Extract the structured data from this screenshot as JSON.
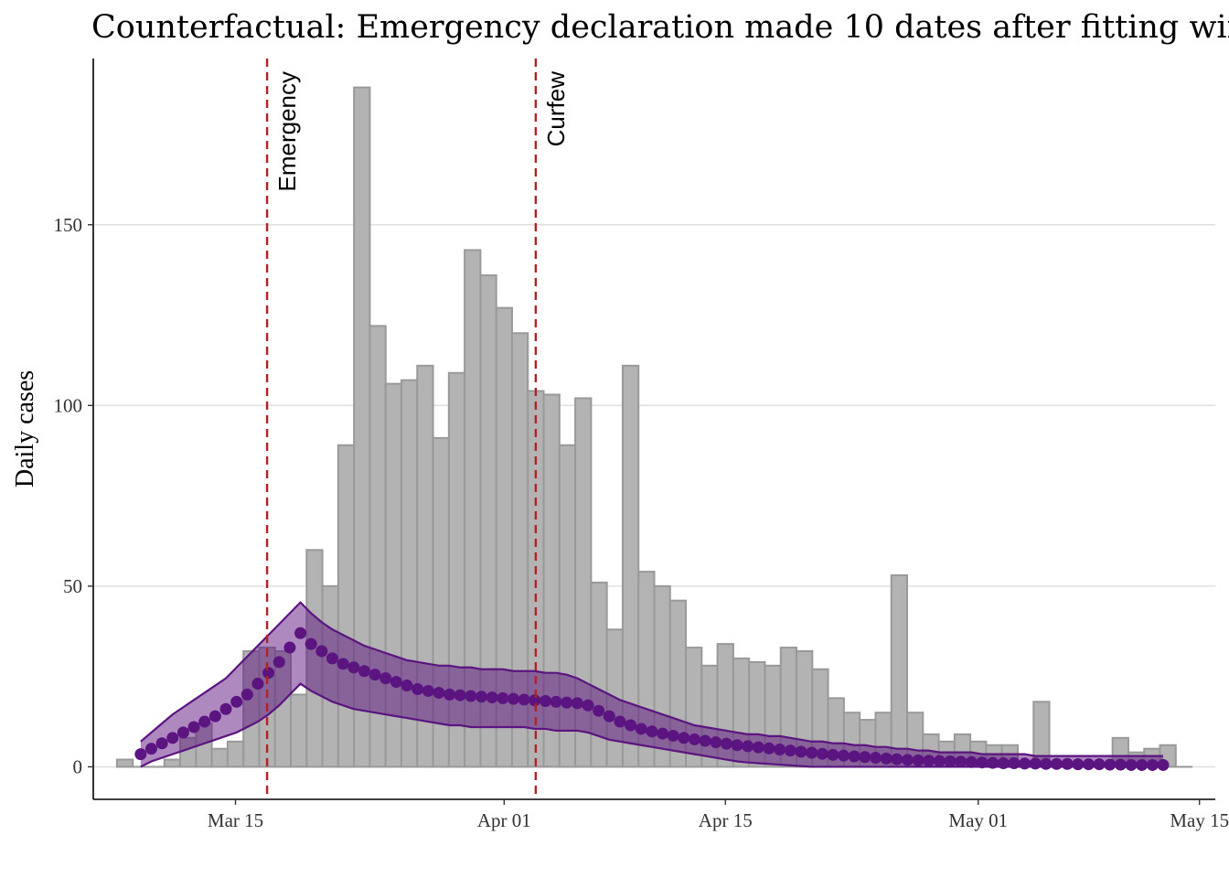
{
  "chart_data": {
    "type": "bar",
    "title": "Counterfactual: Emergency declaration made 10 dates after fitting window",
    "xlabel": "",
    "ylabel": "Daily cases",
    "x_start_date": "2020-03-08",
    "x_ticks": [
      {
        "date": "2020-03-15",
        "label": "Mar 15"
      },
      {
        "date": "2020-04-01",
        "label": "Apr 01"
      },
      {
        "date": "2020-04-15",
        "label": "Apr 15"
      },
      {
        "date": "2020-05-01",
        "label": "May 01"
      },
      {
        "date": "2020-05-15",
        "label": "May 15"
      }
    ],
    "xlim": [
      "2020-03-06",
      "2020-05-16"
    ],
    "ylim": [
      -9,
      196
    ],
    "y_ticks": [
      0,
      50,
      100,
      150
    ],
    "grid": "horizontal-major",
    "daily_cases": [
      2,
      0,
      0,
      2,
      8,
      12,
      5,
      7,
      32,
      33,
      32,
      20,
      60,
      50,
      89,
      188,
      122,
      106,
      107,
      111,
      91,
      109,
      143,
      136,
      127,
      120,
      104,
      103,
      89,
      102,
      51,
      38,
      111,
      54,
      50,
      46,
      33,
      28,
      34,
      30,
      29,
      28,
      33,
      32,
      27,
      19,
      15,
      13,
      15,
      53,
      15,
      9,
      7,
      9,
      7,
      6,
      6,
      0,
      18,
      0,
      0,
      0,
      0,
      8,
      4,
      5,
      6,
      0
    ],
    "model": {
      "name": "Counterfactual fit",
      "start_date": "2020-03-09",
      "median": [
        3.5,
        5,
        6.5,
        8,
        9.5,
        11,
        12.5,
        14,
        16,
        18,
        20,
        23,
        26,
        29,
        33,
        37,
        34,
        32,
        30,
        28.5,
        27.5,
        26.5,
        25.5,
        24.5,
        23.5,
        22.5,
        21.5,
        21,
        20.5,
        20,
        19.8,
        19.6,
        19.4,
        19.2,
        19,
        18.8,
        18.6,
        18.4,
        18.2,
        18,
        17.8,
        17.6,
        17,
        15.5,
        14,
        12.5,
        11.5,
        10.5,
        9.8,
        9.2,
        8.6,
        8,
        7.6,
        7.2,
        6.8,
        6.4,
        6,
        5.7,
        5.4,
        5.1,
        4.8,
        4.5,
        4.2,
        3.9,
        3.6,
        3.3,
        3.1,
        2.9,
        2.7,
        2.5,
        2.3,
        2.1,
        1.9,
        1.8,
        1.7,
        1.6,
        1.5,
        1.4,
        1.3,
        1.2,
        1.1,
        1,
        1,
        0.9,
        0.9,
        0.8,
        0.8,
        0.8,
        0.7,
        0.7,
        0.7,
        0.6,
        0.6,
        0.5,
        0.5,
        0.5,
        0.5
      ],
      "upper": [
        7,
        9.5,
        12,
        14.5,
        16.5,
        18.5,
        20.5,
        22.5,
        24.5,
        27.5,
        30.5,
        33.5,
        36.5,
        39.5,
        42.5,
        45.5,
        42.5,
        40,
        38,
        36.5,
        35,
        33.5,
        32.5,
        31.5,
        30.5,
        29.5,
        29,
        28.5,
        28,
        28,
        27.5,
        27.5,
        27,
        27,
        27,
        26.5,
        26.5,
        26.5,
        26,
        26,
        25.5,
        24.5,
        23,
        21.5,
        20,
        18.5,
        17.5,
        16.5,
        15.5,
        14.5,
        13.5,
        12.5,
        11.5,
        11,
        10.5,
        10,
        9.5,
        9,
        9,
        8.5,
        8.5,
        8,
        7.5,
        7,
        7,
        6.5,
        6.5,
        6,
        6,
        5.5,
        5.5,
        5,
        5,
        4.5,
        4.5,
        4,
        4,
        4,
        4,
        3.5,
        3.5,
        3.5,
        3.5,
        3.5,
        3,
        3,
        3,
        3,
        3,
        3,
        3,
        3,
        3,
        3,
        3,
        3,
        3
      ],
      "lower": [
        0,
        1.5,
        2.5,
        3.5,
        4.5,
        5.5,
        6.5,
        7.5,
        8.5,
        9.5,
        11,
        12.5,
        14.5,
        17,
        20,
        23,
        21,
        19.5,
        18,
        17,
        16,
        15.5,
        15,
        14.5,
        14,
        13.5,
        13,
        12.5,
        12,
        11.5,
        11.5,
        11,
        11,
        11,
        11,
        11,
        11,
        10.5,
        10.5,
        10,
        10,
        10,
        9.5,
        8.5,
        7.5,
        7,
        6.5,
        6,
        5.5,
        5,
        4.5,
        4,
        3.5,
        3,
        2.5,
        2,
        1.5,
        1.2,
        1,
        0.8,
        0.6,
        0.4,
        0.2,
        0,
        0,
        0,
        0,
        0,
        0,
        0,
        0,
        0,
        0,
        0,
        0,
        0,
        0,
        0,
        0,
        0,
        0,
        0,
        0,
        0,
        0,
        0,
        0,
        0,
        0,
        0,
        0,
        0,
        0,
        0,
        0,
        0,
        0
      ]
    },
    "vlines": [
      {
        "date": "2020-03-17",
        "label": "Emergency"
      },
      {
        "date": "2020-04-03",
        "label": "Curfew"
      }
    ],
    "colors": {
      "bar_fill": "#b3b3b3",
      "bar_stroke": "#999999",
      "model": "#5b1480",
      "vline": "#b22222",
      "grid": "#e0e0e0"
    }
  }
}
